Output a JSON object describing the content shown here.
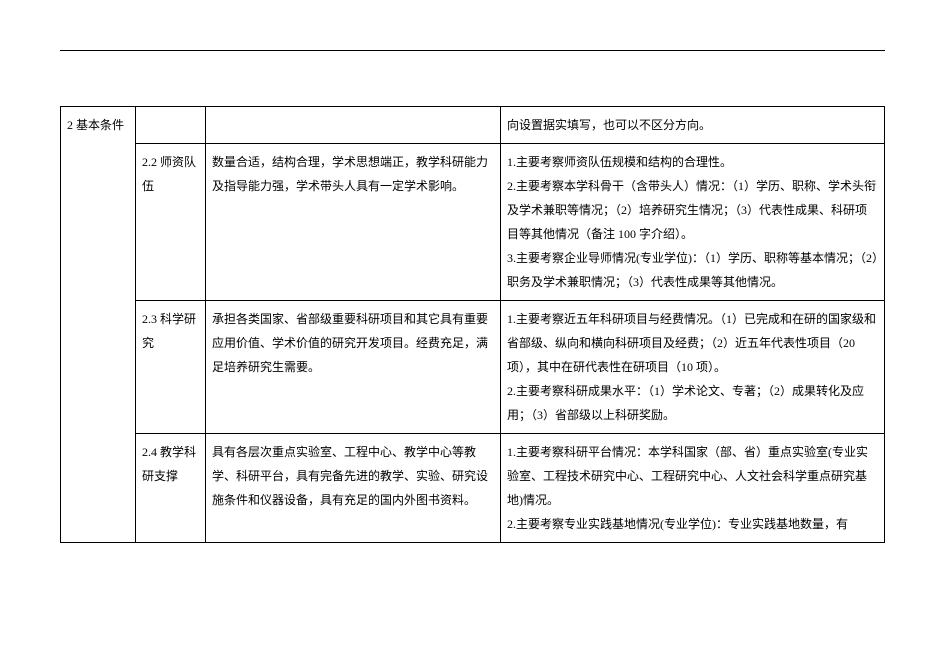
{
  "table": {
    "category": "2  基本条件",
    "row0": {
      "c4": "向设置据实填写，也可以不区分方向。"
    },
    "row1": {
      "label": "2.2  师资队伍",
      "c3": "数量合适，结构合理，学术思想端正，教学科研能力及指导能力强，学术带头人具有一定学术影响。",
      "c4": "1.主要考察师资队伍规模和结构的合理性。\n2.主要考察本学科骨干（含带头人）情况：（1）学历、职称、学术头衔及学术兼职等情况；（2）培养研究生情况；（3）代表性成果、科研项目等其他情况（备注 100 字介绍）。\n3.主要考察企业导师情况(专业学位)：（1）学历、职称等基本情况；（2）职务及学术兼职情况；（3）代表性成果等其他情况。"
    },
    "row2": {
      "label": "2.3  科学研究",
      "c3": "承担各类国家、省部级重要科研项目和其它具有重要应用价值、学术价值的研究开发项目。经费充足，满足培养研究生需要。",
      "c4": "1.主要考察近五年科研项目与经费情况。（1）已完成和在研的国家级和省部级、纵向和横向科研项目及经费；（2）近五年代表性项目（20 项），其中在研代表性在研项目（10 项）。\n2.主要考察科研成果水平：（1）学术论文、专著；（2）成果转化及应用；（3）省部级以上科研奖励。"
    },
    "row3": {
      "label": "2.4  教学科研支撑",
      "c3": "具有各层次重点实验室、工程中心、教学中心等教学、科研平台，具有完备先进的教学、实验、研究设施条件和仪器设备，具有充足的国内外图书资料。",
      "c4": "1.主要考察科研平台情况：本学科国家（部、省）重点实验室(专业实验室、工程技术研究中心、工程研究中心、人文社会科学重点研究基地)情况。\n2.主要考察专业实践基地情况(专业学位)：专业实践基地数量，有"
    }
  }
}
